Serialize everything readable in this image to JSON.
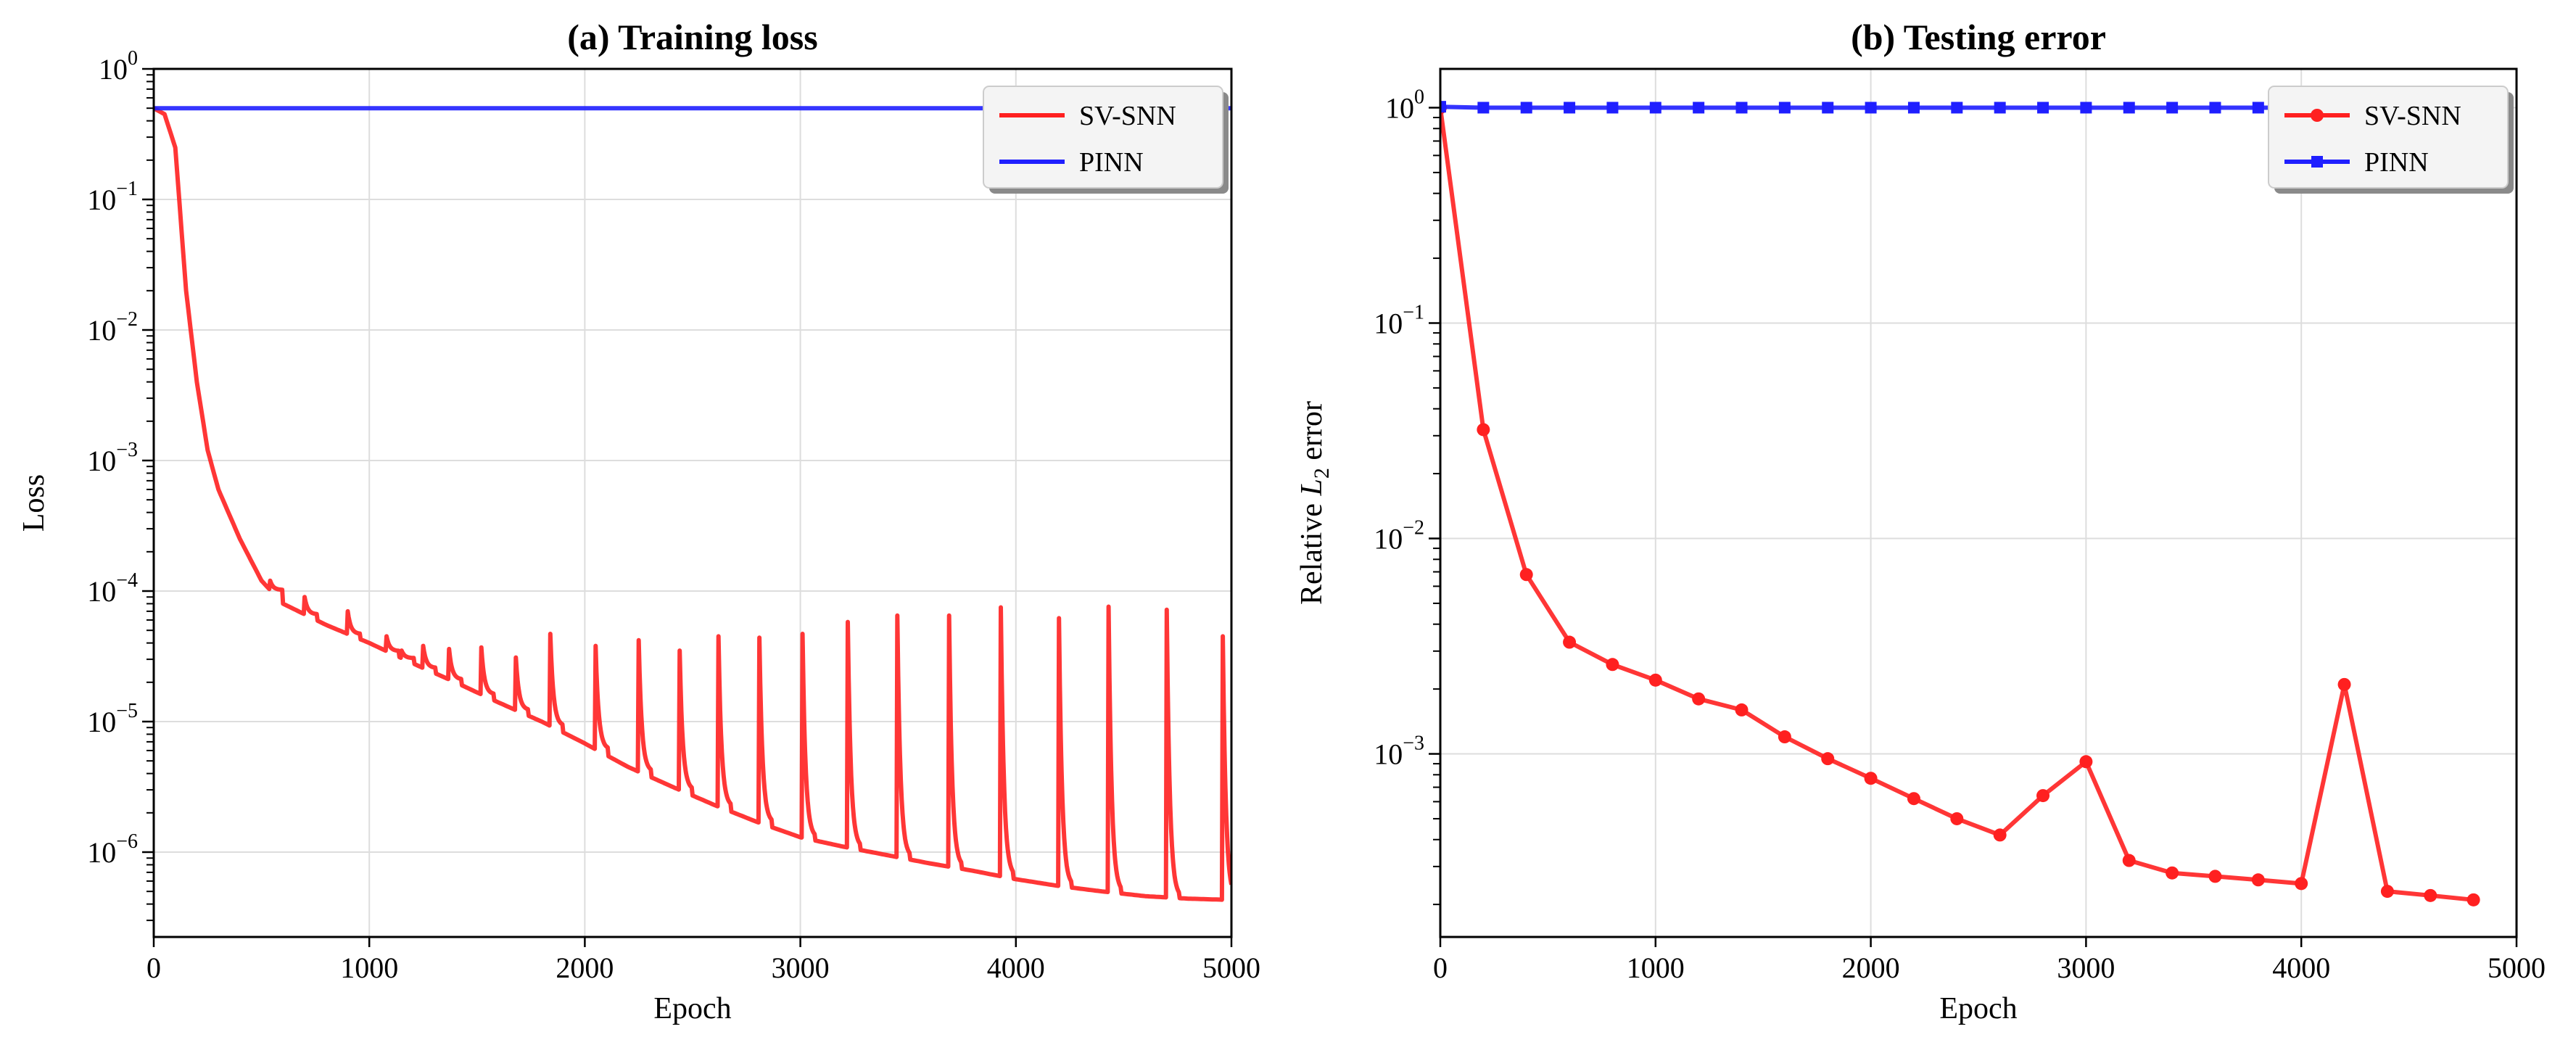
{
  "chart_data": [
    {
      "type": "line",
      "title": "(a) Training loss",
      "xlabel": "Epoch",
      "ylabel": "Loss",
      "yscale": "log",
      "xlim": [
        0,
        5000
      ],
      "ylim_exp": [
        -6.65,
        0
      ],
      "grid": true,
      "legend_position": "top-right",
      "xticks": [
        "0",
        "1000",
        "2000",
        "3000",
        "4000",
        "5000"
      ],
      "yticks": [
        {
          "base": "10",
          "exp": "0"
        },
        {
          "base": "10",
          "exp": "−1"
        },
        {
          "base": "10",
          "exp": "−2"
        },
        {
          "base": "10",
          "exp": "−3"
        },
        {
          "base": "10",
          "exp": "−4"
        },
        {
          "base": "10",
          "exp": "−5"
        },
        {
          "base": "10",
          "exp": "−6"
        }
      ],
      "series": [
        {
          "name": "SV-SNN",
          "color": "#ff2020",
          "base_curve": [
            [
              0,
              0.5
            ],
            [
              50,
              0.45
            ],
            [
              100,
              0.25
            ],
            [
              150,
              0.02
            ],
            [
              200,
              0.004
            ],
            [
              250,
              0.0012
            ],
            [
              300,
              0.0006
            ],
            [
              400,
              0.00025
            ],
            [
              500,
              0.00012
            ],
            [
              600,
              8e-05
            ],
            [
              800,
              5.5e-05
            ],
            [
              1000,
              4e-05
            ],
            [
              1200,
              2.8e-05
            ],
            [
              1400,
              2e-05
            ],
            [
              1600,
              1.4e-05
            ],
            [
              1800,
              1e-05
            ],
            [
              2000,
              6.8e-06
            ],
            [
              2200,
              4.5e-06
            ],
            [
              2400,
              3.2e-06
            ],
            [
              2600,
              2.3e-06
            ],
            [
              2800,
              1.7e-06
            ],
            [
              3000,
              1.3e-06
            ],
            [
              3200,
              1.1e-06
            ],
            [
              3400,
              9.5e-07
            ],
            [
              3600,
              8.2e-07
            ],
            [
              3800,
              7.2e-07
            ],
            [
              4000,
              6.2e-07
            ],
            [
              4200,
              5.5e-07
            ],
            [
              4400,
              5e-07
            ],
            [
              4600,
              4.6e-07
            ],
            [
              4800,
              4.4e-07
            ],
            [
              5000,
              4.3e-07
            ]
          ],
          "spikes": [
            [
              540,
              0.00012
            ],
            [
              700,
              9e-05
            ],
            [
              900,
              7e-05
            ],
            [
              1080,
              4.5e-05
            ],
            [
              1150,
              3.5e-05
            ],
            [
              1250,
              3.8e-05
            ],
            [
              1370,
              3.6e-05
            ],
            [
              1520,
              3.7e-05
            ],
            [
              1680,
              3.1e-05
            ],
            [
              1840,
              4.7e-05
            ],
            [
              2050,
              3.8e-05
            ],
            [
              2250,
              4.2e-05
            ],
            [
              2440,
              3.5e-05
            ],
            [
              2620,
              4.5e-05
            ],
            [
              2810,
              4.4e-05
            ],
            [
              3010,
              4.7e-05
            ],
            [
              3220,
              5.8e-05
            ],
            [
              3450,
              6.5e-05
            ],
            [
              3690,
              6.5e-05
            ],
            [
              3930,
              7.5e-05
            ],
            [
              4200,
              6.2e-05
            ],
            [
              4430,
              7.6e-05
            ],
            [
              4700,
              7.2e-05
            ],
            [
              4960,
              4.5e-05
            ]
          ]
        },
        {
          "name": "PINN",
          "color": "#1f1fff",
          "x": [
            0,
            5000
          ],
          "y": [
            0.5,
            0.5
          ]
        }
      ]
    },
    {
      "type": "line",
      "title": "(b) Testing error",
      "xlabel": "Epoch",
      "ylabel": "Relative L₂ error",
      "ylabel_parts": {
        "pre": "Relative ",
        "var": "L",
        "sub": "2",
        "post": " error"
      },
      "yscale": "log",
      "xlim": [
        0,
        5000
      ],
      "ylim_exp": [
        -3.85,
        0.18
      ],
      "grid": true,
      "legend_position": "top-right",
      "xticks": [
        "0",
        "1000",
        "2000",
        "3000",
        "4000",
        "5000"
      ],
      "yticks": [
        {
          "base": "10",
          "exp": "0"
        },
        {
          "base": "10",
          "exp": "−1"
        },
        {
          "base": "10",
          "exp": "−2"
        },
        {
          "base": "10",
          "exp": "−3"
        }
      ],
      "series": [
        {
          "name": "SV-SNN",
          "color": "#ff2020",
          "marker": "circle",
          "x": [
            0,
            200,
            400,
            600,
            800,
            1000,
            1200,
            1400,
            1600,
            1800,
            2000,
            2200,
            2400,
            2600,
            2800,
            3000,
            3200,
            3400,
            3600,
            3800,
            4000,
            4200,
            4400,
            4600,
            4800
          ],
          "y": [
            1.0,
            0.032,
            0.0068,
            0.0033,
            0.0026,
            0.0022,
            0.0018,
            0.0016,
            0.0012,
            0.00095,
            0.00077,
            0.00062,
            0.0005,
            0.00042,
            0.00064,
            0.00092,
            0.00032,
            0.00028,
            0.00027,
            0.00026,
            0.00025,
            0.0021,
            0.00023,
            0.00022,
            0.00021
          ]
        },
        {
          "name": "PINN",
          "color": "#1f1fff",
          "marker": "square",
          "x": [
            0,
            200,
            400,
            600,
            800,
            1000,
            1200,
            1400,
            1600,
            1800,
            2000,
            2200,
            2400,
            2600,
            2800,
            3000,
            3200,
            3400,
            3600,
            3800,
            4000,
            4200,
            4400,
            4600,
            4800
          ],
          "y": [
            1.01,
            1.0,
            1.0,
            1.0,
            1.0,
            1.0,
            1.0,
            1.0,
            1.0,
            1.0,
            1.0,
            1.0,
            1.0,
            1.0,
            1.0,
            1.0,
            1.0,
            1.0,
            1.0,
            1.0,
            1.0,
            1.0,
            1.0,
            1.0,
            1.0
          ]
        }
      ]
    }
  ]
}
